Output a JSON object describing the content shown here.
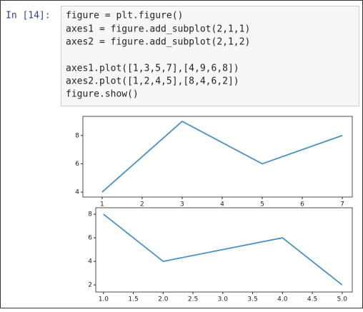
{
  "cell": {
    "prompt": "In  [14]:",
    "code": [
      "figure = plt.figure()",
      "axes1 = figure.add_subplot(2,1,1)",
      "axes2 = figure.add_subplot(2,1,2)",
      "axes1.plot([1,3,5,7],[4,9,6,8])",
      "axes2.plot([1,2,4,5],[8,4,6,2])",
      "figure.show()"
    ]
  },
  "chart_data": [
    {
      "type": "line",
      "x": [
        1,
        3,
        5,
        7
      ],
      "series": [
        {
          "color": "#4a90c2",
          "values": [
            4,
            9,
            6,
            8
          ]
        }
      ],
      "xlim": [
        0.52,
        7.25
      ],
      "ylim": [
        3.65,
        9.35
      ],
      "xticks": [
        1,
        2,
        3,
        4,
        5,
        6,
        7
      ],
      "yticks": [
        4,
        6,
        8
      ]
    },
    {
      "type": "line",
      "x": [
        1,
        2,
        4,
        5
      ],
      "series": [
        {
          "color": "#4a90c2",
          "values": [
            8,
            4,
            6,
            2
          ]
        }
      ],
      "xlim": [
        0.87,
        5.17
      ],
      "ylim": [
        1.4,
        8.55
      ],
      "xticks": [
        {
          "value": 1,
          "label": "1.0"
        },
        {
          "value": 1.5,
          "label": "1.5"
        },
        {
          "value": 2,
          "label": "2.0"
        },
        {
          "value": 2.5,
          "label": "2.5"
        },
        {
          "value": 3,
          "label": "3.0"
        },
        {
          "value": 3.5,
          "label": "3.5"
        },
        {
          "value": 4,
          "label": "4.0"
        },
        {
          "value": 4.5,
          "label": "4.5"
        },
        {
          "value": 5,
          "label": "5.0"
        }
      ],
      "yticks": [
        2,
        4,
        6,
        8
      ]
    }
  ]
}
